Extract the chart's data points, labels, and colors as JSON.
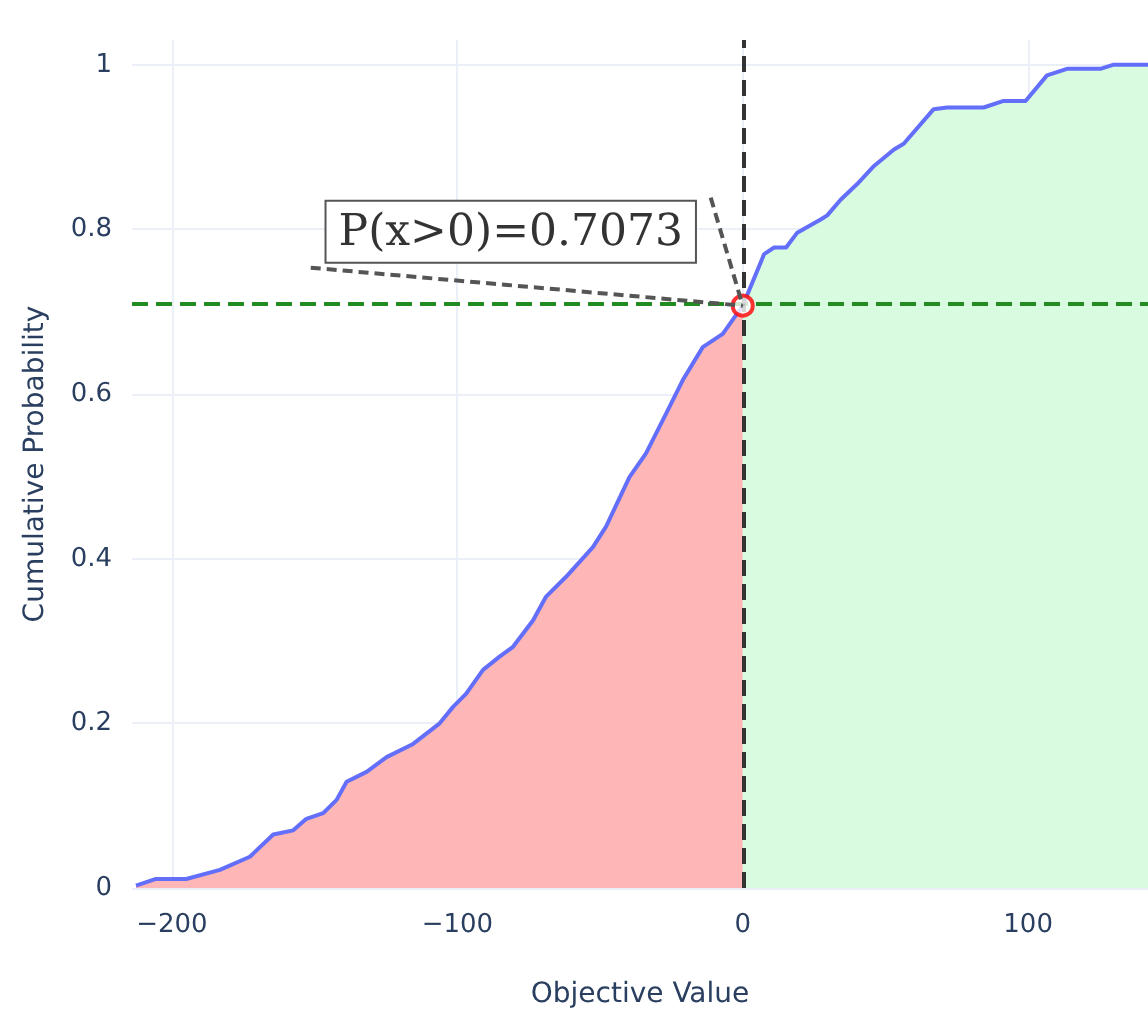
{
  "chart_data": {
    "type": "line",
    "xlabel": "Objective Value",
    "ylabel": "Cumulative Probability",
    "xlim": [
      -214,
      142
    ],
    "xticks": [
      -200,
      -100,
      0,
      100
    ],
    "ylim": [
      0,
      1.03
    ],
    "yticks": [
      0,
      0.2,
      0.4,
      0.6,
      0.8,
      1
    ],
    "grid": true,
    "series": [
      {
        "type": "area",
        "color": "#ffb6b6",
        "x": [
          -212.6,
          -205.6,
          -195,
          -183.2,
          -172.7,
          -164.5,
          -157.5,
          -152.9,
          -147,
          -142.3,
          -138.8,
          -131.8,
          -124.8,
          -115.5,
          -106.2,
          -101.5,
          -96.9,
          -91,
          -85.2,
          -80.5,
          -73.5,
          -68.9,
          -61.9,
          -52.5,
          -47.9,
          -39.7,
          -33.9,
          -26.9,
          -21,
          -14,
          -7,
          0
        ],
        "values": [
          0.003,
          0.011,
          0.011,
          0.022,
          0.038,
          0.065,
          0.07,
          0.084,
          0.091,
          0.107,
          0.129,
          0.141,
          0.159,
          0.175,
          0.2,
          0.22,
          0.236,
          0.265,
          0.281,
          0.293,
          0.325,
          0.354,
          0.378,
          0.414,
          0.439,
          0.499,
          0.528,
          0.576,
          0.617,
          0.657,
          0.673,
          0.7073
        ]
      },
      {
        "type": "area",
        "color": "#d9fbe0",
        "x": [
          0,
          7.5,
          11,
          15.2,
          19.1,
          27.3,
          29.6,
          34.3,
          40.1,
          46,
          53,
          56.4,
          66.9,
          71.6,
          84.4,
          91.4,
          99.1,
          106.6,
          113.6,
          125.3,
          130,
          142
        ],
        "values": [
          0.7073,
          0.77,
          0.778,
          0.778,
          0.796,
          0.812,
          0.817,
          0.836,
          0.855,
          0.877,
          0.897,
          0.904,
          0.946,
          0.948,
          0.948,
          0.956,
          0.956,
          0.987,
          0.995,
          0.995,
          1,
          1
        ]
      },
      {
        "color": "#636efa",
        "x": [
          -212.6,
          -205.6,
          -195,
          -183.2,
          -172.7,
          -164.5,
          -157.5,
          -152.9,
          -147,
          -142.3,
          -138.8,
          -131.8,
          -124.8,
          -115.5,
          -106.2,
          -101.5,
          -96.9,
          -91,
          -85.2,
          -80.5,
          -73.5,
          -68.9,
          -61.9,
          -52.5,
          -47.9,
          -39.7,
          -33.9,
          -26.9,
          -21,
          -14,
          -7,
          0,
          7.5,
          11,
          15.2,
          19.1,
          27.3,
          29.6,
          34.3,
          40.1,
          46,
          53,
          56.4,
          66.9,
          71.6,
          84.4,
          91.4,
          99.1,
          106.6,
          113.6,
          125.3,
          130,
          142
        ],
        "values": [
          0.003,
          0.011,
          0.011,
          0.022,
          0.038,
          0.065,
          0.07,
          0.084,
          0.091,
          0.107,
          0.129,
          0.141,
          0.159,
          0.175,
          0.2,
          0.22,
          0.236,
          0.265,
          0.281,
          0.293,
          0.325,
          0.354,
          0.378,
          0.414,
          0.439,
          0.499,
          0.528,
          0.576,
          0.617,
          0.657,
          0.673,
          0.7073,
          0.77,
          0.778,
          0.778,
          0.796,
          0.812,
          0.817,
          0.836,
          0.855,
          0.877,
          0.897,
          0.904,
          0.946,
          0.948,
          0.948,
          0.956,
          0.956,
          0.987,
          0.995,
          0.995,
          1,
          1
        ]
      },
      {
        "type": "scatter",
        "color": "#ff0000",
        "marker": "circle",
        "x": [
          0
        ],
        "values": [
          0.7073
        ]
      }
    ],
    "ref_lines": [
      {
        "axis": "y",
        "value": 0.7073,
        "color": "#228b22",
        "line_style": "dashed"
      },
      {
        "axis": "x",
        "value": 0,
        "color": "#333333",
        "line_style": "dashed"
      }
    ],
    "annotations": [
      {
        "text": "P(x>0)=0.7073",
        "x": 0,
        "y": 0.7073
      }
    ]
  }
}
